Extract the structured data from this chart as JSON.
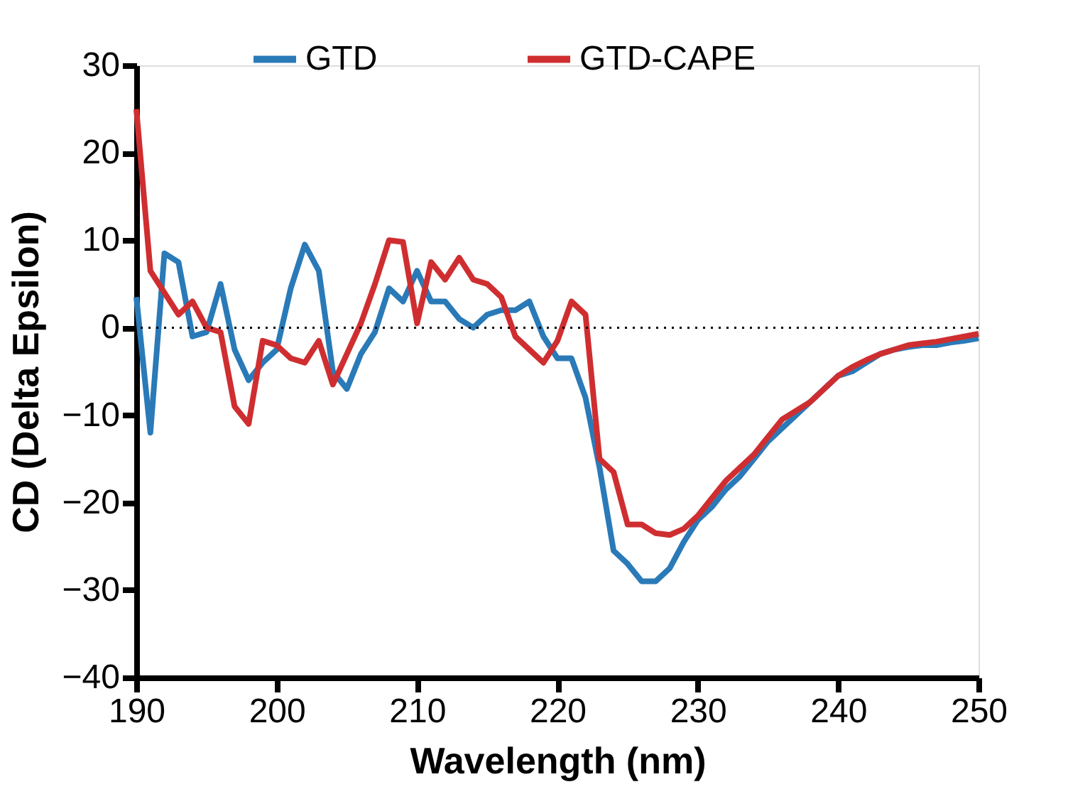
{
  "chart_data": {
    "type": "line",
    "xlabel": "Wavelength (nm)",
    "ylabel": "CD (Delta Epsilon)",
    "x": [
      190,
      191,
      192,
      193,
      194,
      195,
      196,
      197,
      198,
      199,
      200,
      201,
      202,
      203,
      204,
      205,
      206,
      207,
      208,
      209,
      210,
      211,
      212,
      213,
      214,
      215,
      216,
      217,
      218,
      219,
      220,
      221,
      222,
      223,
      224,
      225,
      226,
      227,
      228,
      229,
      230,
      231,
      232,
      233,
      234,
      235,
      236,
      237,
      238,
      239,
      240,
      241,
      242,
      243,
      244,
      245,
      246,
      247,
      248,
      249,
      250
    ],
    "series": [
      {
        "name": "GTD",
        "color": "#2a7ab8",
        "values": [
          3.5,
          -12,
          8.5,
          7.5,
          -1,
          -0.5,
          5,
          -2.5,
          -6,
          -4,
          -2.5,
          4.5,
          9.5,
          6.5,
          -5,
          -7,
          -3,
          -0.5,
          4.5,
          3,
          6.5,
          3,
          3,
          1,
          0,
          1.5,
          2,
          2,
          3,
          -1,
          -3.5,
          -3.5,
          -8,
          -16,
          -25.5,
          -27,
          -29,
          -29,
          -27.5,
          -24.5,
          -22,
          -20.5,
          -18.5,
          -17,
          -15,
          -13,
          -11.5,
          -10,
          -8.5,
          -7,
          -5.5,
          -5,
          -4,
          -3,
          -2.5,
          -2.2,
          -2,
          -2,
          -1.7,
          -1.5,
          -1.2
        ]
      },
      {
        "name": "GTD-CAPE",
        "color": "#cf2e30",
        "values": [
          25,
          6.5,
          4,
          1.5,
          3,
          0,
          -0.5,
          -9,
          -11,
          -1.5,
          -2,
          -3.5,
          -4,
          -1.5,
          -6.5,
          -3,
          0.5,
          5,
          10,
          9.8,
          0.5,
          7.5,
          5.5,
          8,
          5.5,
          5,
          3.5,
          -1,
          -2.5,
          -4,
          -1.5,
          3,
          1.5,
          -15,
          -16.5,
          -22.5,
          -22.5,
          -23.5,
          -23.7,
          -23,
          -21.5,
          -19.5,
          -17.5,
          -16,
          -14.5,
          -12.5,
          -10.5,
          -9.5,
          -8.5,
          -7,
          -5.5,
          -4.5,
          -3.7,
          -3,
          -2.5,
          -2,
          -1.8,
          -1.6,
          -1.3,
          -1,
          -0.7
        ]
      }
    ],
    "xlim": [
      190,
      250
    ],
    "xticks": [
      190,
      200,
      210,
      220,
      230,
      240,
      250
    ],
    "ylim": [
      -40,
      30
    ],
    "yticks": [
      -40,
      -30,
      -20,
      -10,
      0,
      10,
      20,
      30
    ],
    "ref_lines": [
      {
        "axis": "y",
        "value": 0,
        "line_style": "dotted",
        "color": "#000000"
      }
    ],
    "grid": false,
    "legend": "top",
    "marker": "none",
    "line_style": "solid"
  }
}
